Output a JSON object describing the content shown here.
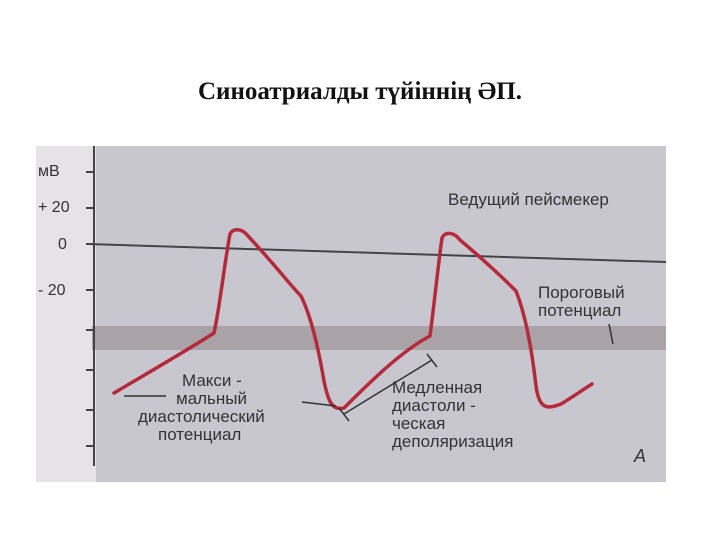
{
  "title": "Синоатриалды түйіннің ӘП.",
  "figure": {
    "y_unit": "мВ",
    "y_ticks": [
      "+ 20",
      "0",
      "- 20"
    ],
    "labels": {
      "pacemaker": "Ведущий пейсмекер",
      "threshold": [
        "Пороговый",
        "потенциал"
      ],
      "max_diastolic": [
        "Макси -",
        "мальный",
        "диастолический",
        "потенциал"
      ],
      "slow_depol": [
        "Медленная",
        "диастоли -",
        "ческая",
        "деполяризация"
      ],
      "panel_letter": "А"
    },
    "colors": {
      "background": "#c8c7cf",
      "trace": "#b42a3a",
      "threshold_band": "#a9a2a6",
      "axis": "#444444"
    }
  }
}
